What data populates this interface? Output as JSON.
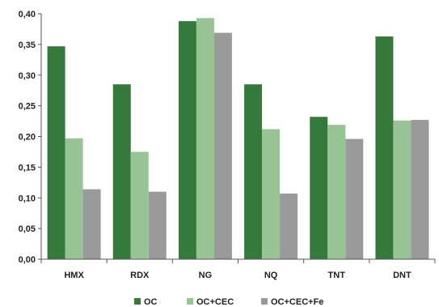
{
  "chart_data": {
    "type": "bar",
    "categories": [
      "HMX",
      "RDX",
      "NG",
      "NQ",
      "TNT",
      "DNT"
    ],
    "series": [
      {
        "name": "OC",
        "color": "#357a3b",
        "values": [
          0.347,
          0.285,
          0.388,
          0.285,
          0.232,
          0.363
        ]
      },
      {
        "name": "OC+CEC",
        "color": "#98c394",
        "values": [
          0.197,
          0.175,
          0.393,
          0.212,
          0.219,
          0.226
        ]
      },
      {
        "name": "OC+CEC+Fe",
        "color": "#9a9a9a",
        "values": [
          0.114,
          0.11,
          0.369,
          0.107,
          0.196,
          0.227
        ]
      }
    ],
    "ylim": [
      0,
      0.4
    ],
    "yticks": [
      "0,00",
      "0,05",
      "0,10",
      "0,15",
      "0,20",
      "0,25",
      "0,30",
      "0,35",
      "0,40"
    ],
    "ytick_step": 0.05,
    "legend_position": "bottom",
    "grid": false
  }
}
